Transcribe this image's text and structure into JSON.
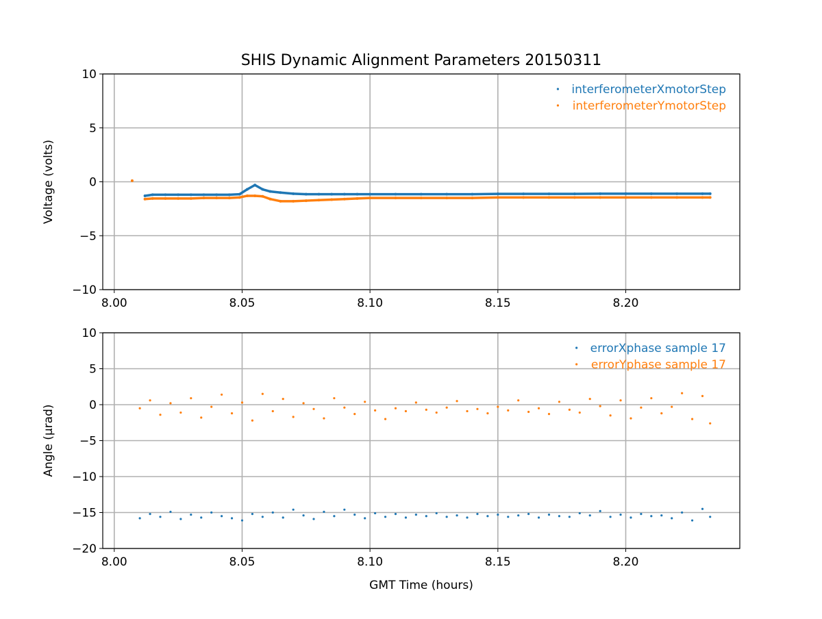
{
  "title": "SHIS Dynamic Alignment Parameters 20150311",
  "colors": {
    "blue": "#1f77b4",
    "orange": "#ff7f0e",
    "grid": "#b0b0b0"
  },
  "chart_data": [
    {
      "type": "scatter",
      "ylabel": "Voltage (volts)",
      "xlabel": "",
      "xlim": [
        7.9955,
        8.2446
      ],
      "ylim": [
        -10,
        10
      ],
      "xticks": [
        8.0,
        8.05,
        8.1,
        8.15,
        8.2
      ],
      "xtick_labels": [
        "8.00",
        "8.05",
        "8.10",
        "8.15",
        "8.20"
      ],
      "yticks": [
        -10,
        -5,
        0,
        5,
        10
      ],
      "ytick_labels": [
        "−10",
        "−5",
        "0",
        "5",
        "10"
      ],
      "grid": true,
      "legend": "top-right",
      "series": [
        {
          "name": "interferometerXmotorStep",
          "color": "#1f77b4",
          "x": [
            8.012,
            8.015,
            8.02,
            8.025,
            8.03,
            8.035,
            8.04,
            8.045,
            8.049,
            8.052,
            8.055,
            8.058,
            8.061,
            8.065,
            8.07,
            8.075,
            8.08,
            8.085,
            8.09,
            8.095,
            8.1,
            8.11,
            8.12,
            8.13,
            8.14,
            8.15,
            8.16,
            8.17,
            8.18,
            8.19,
            8.2,
            8.21,
            8.22,
            8.23,
            8.233
          ],
          "y": [
            -1.3,
            -1.2,
            -1.2,
            -1.2,
            -1.2,
            -1.2,
            -1.2,
            -1.2,
            -1.15,
            -0.7,
            -0.3,
            -0.7,
            -0.9,
            -1.0,
            -1.1,
            -1.15,
            -1.15,
            -1.15,
            -1.15,
            -1.15,
            -1.15,
            -1.15,
            -1.15,
            -1.15,
            -1.15,
            -1.12,
            -1.12,
            -1.12,
            -1.12,
            -1.1,
            -1.1,
            -1.1,
            -1.1,
            -1.1,
            -1.1
          ]
        },
        {
          "name": "interferometerYmotorStep",
          "color": "#ff7f0e",
          "x": [
            8.012,
            8.015,
            8.02,
            8.025,
            8.03,
            8.035,
            8.04,
            8.045,
            8.049,
            8.052,
            8.055,
            8.058,
            8.061,
            8.065,
            8.07,
            8.075,
            8.08,
            8.085,
            8.09,
            8.095,
            8.1,
            8.11,
            8.12,
            8.13,
            8.14,
            8.15,
            8.16,
            8.17,
            8.18,
            8.19,
            8.2,
            8.21,
            8.22,
            8.23,
            8.233
          ],
          "y": [
            -1.6,
            -1.55,
            -1.55,
            -1.55,
            -1.55,
            -1.5,
            -1.5,
            -1.5,
            -1.45,
            -1.3,
            -1.3,
            -1.35,
            -1.6,
            -1.8,
            -1.8,
            -1.75,
            -1.7,
            -1.65,
            -1.6,
            -1.55,
            -1.5,
            -1.5,
            -1.5,
            -1.5,
            -1.5,
            -1.45,
            -1.45,
            -1.45,
            -1.45,
            -1.45,
            -1.45,
            -1.45,
            -1.45,
            -1.45,
            -1.45
          ],
          "isolated_points": [
            [
              8.007,
              0.1
            ]
          ]
        }
      ]
    },
    {
      "type": "scatter",
      "ylabel": "Angle (μrad)",
      "xlabel": "GMT Time (hours)",
      "xlim": [
        7.9955,
        8.2446
      ],
      "ylim": [
        -20,
        10
      ],
      "xticks": [
        8.0,
        8.05,
        8.1,
        8.15,
        8.2
      ],
      "xtick_labels": [
        "8.00",
        "8.05",
        "8.10",
        "8.15",
        "8.20"
      ],
      "yticks": [
        -20,
        -15,
        -10,
        -5,
        0,
        5,
        10
      ],
      "ytick_labels": [
        "−20",
        "−15",
        "−10",
        "−5",
        "0",
        "5",
        "10"
      ],
      "grid": true,
      "legend": "top-right",
      "x": [
        8.01,
        8.014,
        8.018,
        8.022,
        8.026,
        8.03,
        8.034,
        8.038,
        8.042,
        8.046,
        8.05,
        8.054,
        8.058,
        8.062,
        8.066,
        8.07,
        8.074,
        8.078,
        8.082,
        8.086,
        8.09,
        8.094,
        8.098,
        8.102,
        8.106,
        8.11,
        8.114,
        8.118,
        8.122,
        8.126,
        8.13,
        8.134,
        8.138,
        8.142,
        8.146,
        8.15,
        8.154,
        8.158,
        8.162,
        8.166,
        8.17,
        8.174,
        8.178,
        8.182,
        8.186,
        8.19,
        8.194,
        8.198,
        8.202,
        8.206,
        8.21,
        8.214,
        8.218,
        8.222,
        8.226,
        8.23,
        8.233
      ],
      "series": [
        {
          "name": "errorXphase sample 17",
          "color": "#1f77b4",
          "y": [
            -15.8,
            -15.2,
            -15.6,
            -14.9,
            -15.9,
            -15.3,
            -15.7,
            -15.0,
            -15.5,
            -15.8,
            -16.1,
            -15.2,
            -15.6,
            -15.0,
            -15.7,
            -14.6,
            -15.4,
            -15.9,
            -14.9,
            -15.5,
            -14.6,
            -15.3,
            -15.8,
            -15.1,
            -15.6,
            -15.2,
            -15.7,
            -15.3,
            -15.5,
            -15.1,
            -15.6,
            -15.4,
            -15.7,
            -15.2,
            -15.5,
            -15.3,
            -15.6,
            -15.4,
            -15.2,
            -15.7,
            -15.3,
            -15.5,
            -15.6,
            -15.1,
            -15.4,
            -14.8,
            -15.6,
            -15.3,
            -15.7,
            -15.2,
            -15.5,
            -15.4,
            -15.8,
            -15.0,
            -16.1,
            -14.5,
            -15.6
          ]
        },
        {
          "name": "errorYphase sample 17",
          "color": "#ff7f0e",
          "y": [
            -0.5,
            0.6,
            -1.4,
            0.2,
            -1.1,
            0.9,
            -1.8,
            -0.3,
            1.4,
            -1.2,
            0.3,
            -2.2,
            1.5,
            -0.9,
            0.8,
            -1.7,
            0.2,
            -0.6,
            -1.9,
            0.9,
            -0.4,
            -1.3,
            0.4,
            -0.8,
            -2.0,
            -0.5,
            -0.9,
            0.3,
            -0.7,
            -1.1,
            -0.4,
            0.5,
            -0.9,
            -0.6,
            -1.2,
            -0.3,
            -0.8,
            0.6,
            -1.0,
            -0.5,
            -1.3,
            0.4,
            -0.7,
            -1.1,
            0.8,
            -0.2,
            -1.5,
            0.6,
            -1.9,
            -0.4,
            0.9,
            -1.2,
            -0.3,
            1.6,
            -2.0,
            1.2,
            -2.6
          ]
        }
      ]
    }
  ]
}
